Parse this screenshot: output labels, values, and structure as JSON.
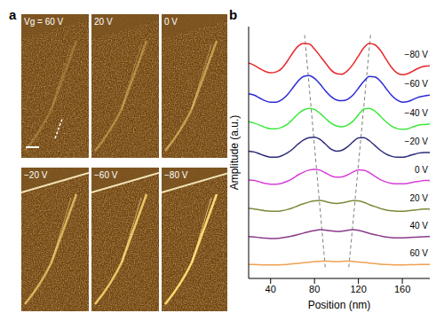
{
  "panel_a": {
    "label": "a",
    "images": [
      "Vg = 60 V",
      "20 V",
      "0 V",
      "−20 V",
      "−60 V",
      "−80 V"
    ]
  },
  "chart_data": {
    "type": "line",
    "panel_label": "b",
    "xlabel": "Position (nm)",
    "ylabel": "Amplitude (a.u.)",
    "x": [
      20,
      25,
      30,
      35,
      40,
      45,
      50,
      55,
      60,
      65,
      70,
      75,
      80,
      85,
      90,
      95,
      100,
      105,
      110,
      115,
      120,
      125,
      130,
      135,
      140,
      145,
      150,
      155,
      160,
      165,
      170,
      175,
      180,
      185
    ],
    "xlim": [
      20,
      185
    ],
    "xticks": [
      40,
      80,
      120,
      160
    ],
    "ylim": [
      0,
      9
    ],
    "tick_labels": "x",
    "series": [
      {
        "name": "−80 V",
        "color": "#e8262a",
        "values": [
          7.7,
          7.62,
          7.5,
          7.4,
          7.35,
          7.38,
          7.5,
          7.75,
          8.05,
          8.3,
          8.4,
          8.38,
          8.2,
          7.95,
          7.7,
          7.45,
          7.32,
          7.3,
          7.42,
          7.65,
          7.95,
          8.25,
          8.4,
          8.35,
          8.15,
          7.85,
          7.55,
          7.35,
          7.28,
          7.32,
          7.42,
          7.52,
          7.58,
          7.6
        ]
      },
      {
        "name": "−60 V",
        "color": "#2b2bd9",
        "values": [
          6.6,
          6.55,
          6.45,
          6.35,
          6.3,
          6.3,
          6.38,
          6.55,
          6.8,
          7.05,
          7.22,
          7.25,
          7.15,
          6.95,
          6.7,
          6.5,
          6.38,
          6.35,
          6.4,
          6.55,
          6.8,
          7.05,
          7.22,
          7.2,
          7.05,
          6.8,
          6.55,
          6.38,
          6.3,
          6.32,
          6.4,
          6.48,
          6.52,
          6.55
        ]
      },
      {
        "name": "−40 V",
        "color": "#3ee83e",
        "values": [
          5.6,
          5.55,
          5.48,
          5.4,
          5.35,
          5.35,
          5.4,
          5.5,
          5.68,
          5.88,
          6.02,
          6.08,
          6.04,
          5.9,
          5.72,
          5.55,
          5.45,
          5.42,
          5.48,
          5.62,
          5.85,
          6.05,
          6.08,
          5.98,
          5.8,
          5.6,
          5.45,
          5.36,
          5.33,
          5.35,
          5.42,
          5.48,
          5.5,
          5.52
        ]
      },
      {
        "name": "−20 V",
        "color": "#2b2b7a",
        "values": [
          4.55,
          4.52,
          4.45,
          4.38,
          4.33,
          4.33,
          4.38,
          4.48,
          4.62,
          4.8,
          4.95,
          5.03,
          5.05,
          4.97,
          4.8,
          4.62,
          4.55,
          4.58,
          4.7,
          4.88,
          5.02,
          5.03,
          4.92,
          4.75,
          4.58,
          4.45,
          4.37,
          4.33,
          4.33,
          4.37,
          4.43,
          4.48,
          4.5,
          4.5
        ]
      },
      {
        "name": "0 V",
        "color": "#d63fd6",
        "values": [
          3.52,
          3.5,
          3.45,
          3.4,
          3.37,
          3.37,
          3.4,
          3.47,
          3.57,
          3.7,
          3.8,
          3.87,
          3.9,
          3.87,
          3.77,
          3.67,
          3.62,
          3.63,
          3.7,
          3.8,
          3.88,
          3.87,
          3.78,
          3.65,
          3.53,
          3.45,
          3.4,
          3.38,
          3.38,
          3.4,
          3.44,
          3.47,
          3.5,
          3.5
        ]
      },
      {
        "name": "20 V",
        "color": "#7a8a3a",
        "values": [
          2.5,
          2.48,
          2.45,
          2.42,
          2.4,
          2.4,
          2.42,
          2.46,
          2.52,
          2.6,
          2.67,
          2.73,
          2.77,
          2.79,
          2.75,
          2.7,
          2.68,
          2.7,
          2.74,
          2.78,
          2.77,
          2.72,
          2.64,
          2.57,
          2.5,
          2.45,
          2.42,
          2.4,
          2.4,
          2.42,
          2.44,
          2.46,
          2.48,
          2.48
        ]
      },
      {
        "name": "40 V",
        "color": "#8a3a8a",
        "values": [
          1.5,
          1.48,
          1.46,
          1.44,
          1.43,
          1.43,
          1.45,
          1.48,
          1.52,
          1.57,
          1.62,
          1.67,
          1.71,
          1.74,
          1.73,
          1.7,
          1.68,
          1.69,
          1.72,
          1.74,
          1.72,
          1.67,
          1.61,
          1.56,
          1.52,
          1.48,
          1.46,
          1.45,
          1.45,
          1.46,
          1.47,
          1.48,
          1.49,
          1.5
        ]
      },
      {
        "name": "60 V",
        "color": "#f0a050",
        "values": [
          0.5,
          0.5,
          0.49,
          0.48,
          0.48,
          0.48,
          0.49,
          0.5,
          0.52,
          0.54,
          0.56,
          0.58,
          0.6,
          0.61,
          0.62,
          0.61,
          0.6,
          0.61,
          0.62,
          0.61,
          0.59,
          0.57,
          0.55,
          0.53,
          0.51,
          0.5,
          0.49,
          0.48,
          0.48,
          0.49,
          0.49,
          0.5,
          0.5,
          0.5
        ]
      }
    ],
    "guides": [
      {
        "type": "line",
        "line_style": "dashed",
        "color": "#808080",
        "x": [
          71,
          90
        ],
        "values": [
          8.7,
          0.3
        ]
      },
      {
        "type": "line",
        "line_style": "dashed",
        "color": "#808080",
        "x": [
          131,
          111
        ],
        "values": [
          8.7,
          0.3
        ]
      }
    ]
  }
}
